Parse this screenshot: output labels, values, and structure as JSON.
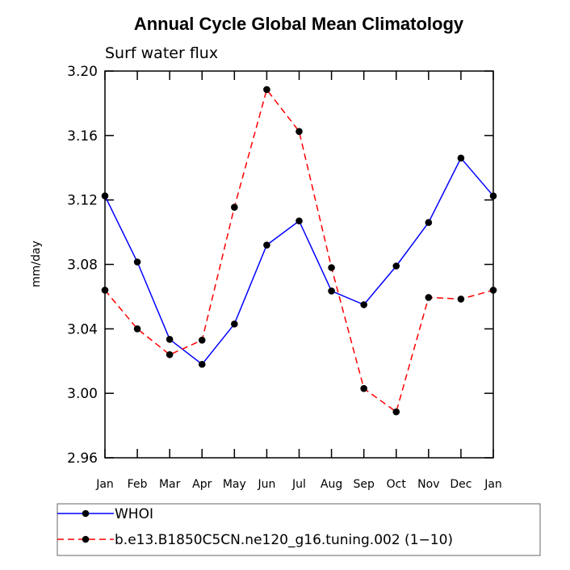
{
  "chart_data": {
    "type": "line",
    "title": "Annual Cycle Global Mean Climatology",
    "subtitle": "Surf water flux",
    "xlabel": "",
    "ylabel": "mm/day",
    "categories": [
      "Jan",
      "Feb",
      "Mar",
      "Apr",
      "May",
      "Jun",
      "Jul",
      "Aug",
      "Sep",
      "Oct",
      "Nov",
      "Dec",
      "Jan"
    ],
    "ylim": [
      2.96,
      3.2
    ],
    "yticks": [
      "2.96",
      "3.00",
      "3.04",
      "3.08",
      "3.12",
      "3.16",
      "3.20"
    ],
    "grid": false,
    "legend_position": "bottom",
    "series": [
      {
        "name": "WHOI",
        "color": "#0000ff",
        "line_style": "solid",
        "marker": "circle",
        "values": [
          3.1225,
          3.0815,
          3.0335,
          3.018,
          3.043,
          3.092,
          3.107,
          3.0635,
          3.055,
          3.079,
          3.106,
          3.146,
          3.1225
        ]
      },
      {
        "name": "b.e13.B1850C5CN.ne120_g16.tuning.002 (1−10)",
        "color": "#ff0000",
        "line_style": "dashed",
        "marker": "circle",
        "values": [
          3.064,
          3.04,
          3.024,
          3.033,
          3.1155,
          3.1885,
          3.1625,
          3.078,
          3.003,
          2.9885,
          3.0595,
          3.0585,
          3.064
        ]
      }
    ]
  }
}
